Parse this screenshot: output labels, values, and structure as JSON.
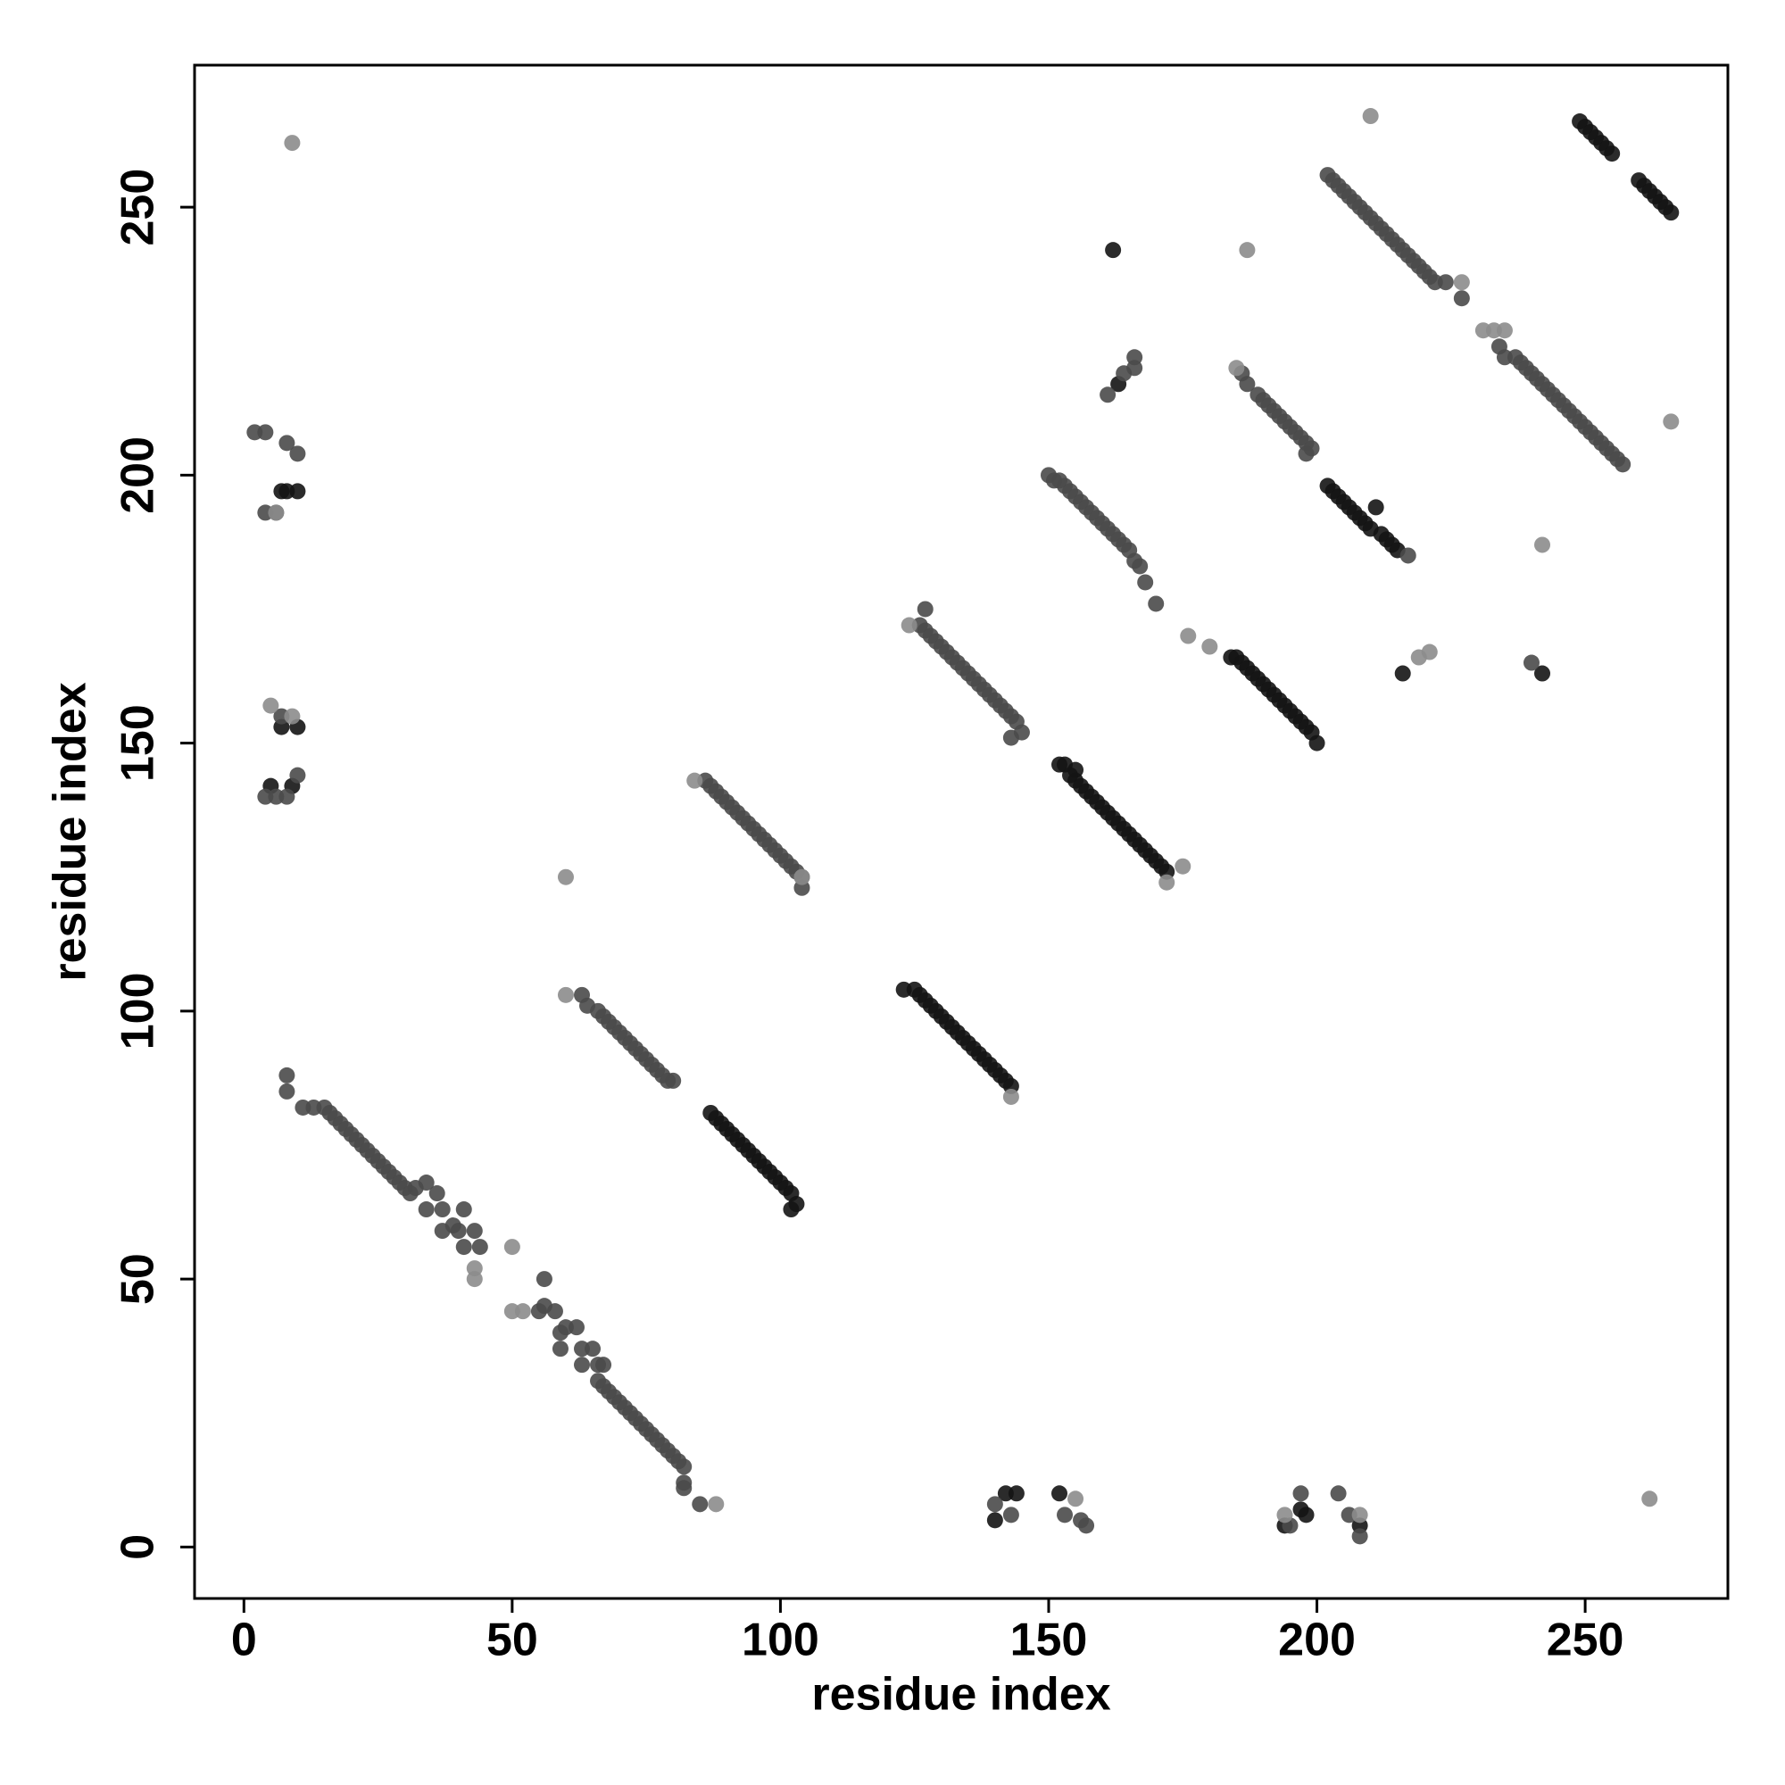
{
  "chart_data": {
    "type": "scatter",
    "xlabel": "residue index",
    "ylabel": "residue index",
    "xlim": [
      -9.2,
      276.6
    ],
    "ylim": [
      -9.6,
      276.5
    ],
    "xticks": [
      0,
      50,
      100,
      150,
      200,
      250
    ],
    "yticks": [
      0,
      50,
      100,
      150,
      200,
      250
    ],
    "series": [
      {
        "color": "#141414",
        "x": [
          87,
          88,
          89,
          90,
          91,
          92,
          93,
          94,
          95,
          96,
          97,
          98,
          99,
          100,
          101,
          102,
          102,
          103,
          123,
          125,
          126,
          127,
          128,
          129,
          130,
          131,
          132,
          133,
          134,
          135,
          136,
          137,
          138,
          139,
          140,
          141,
          142,
          143,
          152,
          153,
          155,
          154,
          155,
          156,
          157,
          158,
          159,
          160,
          161,
          162,
          163,
          164,
          165,
          166,
          167,
          168,
          169,
          170,
          171,
          172,
          184,
          185,
          186,
          187,
          188,
          189,
          190,
          191,
          192,
          193,
          194,
          195,
          196,
          197,
          198,
          199,
          200,
          202,
          203,
          204,
          205,
          206,
          207,
          208,
          209,
          210,
          211,
          212,
          213,
          214,
          215,
          249,
          250,
          251,
          252,
          253,
          254,
          255,
          260,
          261,
          262,
          263,
          264,
          265,
          266,
          7,
          8,
          10,
          7,
          10,
          5,
          9,
          140,
          142,
          144,
          152,
          194,
          197,
          198,
          208,
          162,
          163,
          216,
          242
        ],
        "values": [
          81,
          80,
          79,
          78,
          77,
          76,
          75,
          74,
          73,
          72,
          71,
          70,
          69,
          68,
          67,
          66,
          63,
          64,
          104,
          104,
          103,
          102,
          101,
          100,
          99,
          98,
          97,
          96,
          95,
          94,
          93,
          92,
          91,
          90,
          89,
          88,
          87,
          86,
          146,
          146,
          145,
          144,
          143,
          142,
          141,
          140,
          139,
          138,
          137,
          136,
          135,
          134,
          133,
          132,
          131,
          130,
          129,
          128,
          127,
          126,
          166,
          166,
          165,
          164,
          163,
          162,
          161,
          160,
          159,
          158,
          157,
          156,
          155,
          154,
          153,
          152,
          150,
          198,
          197,
          196,
          195,
          194,
          193,
          192,
          191,
          190,
          194,
          189,
          188,
          187,
          186,
          266,
          265,
          264,
          263,
          262,
          261,
          260,
          255,
          254,
          253,
          252,
          251,
          250,
          249,
          197,
          197,
          197,
          153,
          153,
          142,
          142,
          5,
          10,
          10,
          10,
          4,
          7,
          6,
          4,
          242,
          217,
          163,
          163
        ]
      },
      {
        "color": "#4a4a4a",
        "x": [
          8,
          8,
          11,
          13,
          15,
          16,
          17,
          18,
          19,
          20,
          21,
          22,
          23,
          24,
          25,
          26,
          27,
          28,
          29,
          30,
          31,
          32,
          34,
          34,
          36,
          37,
          37,
          39,
          40,
          41,
          41,
          43,
          44,
          55,
          56,
          56,
          58,
          59,
          59,
          60,
          62,
          63,
          63,
          65,
          66,
          66,
          67,
          67,
          68,
          69,
          70,
          71,
          72,
          73,
          74,
          75,
          76,
          77,
          78,
          79,
          80,
          81,
          82,
          82,
          82,
          85,
          63,
          64,
          66,
          67,
          68,
          69,
          70,
          71,
          72,
          73,
          74,
          75,
          76,
          77,
          78,
          79,
          80,
          86,
          87,
          88,
          89,
          90,
          91,
          92,
          93,
          94,
          95,
          96,
          97,
          98,
          99,
          100,
          101,
          102,
          103,
          104,
          104,
          126,
          127,
          127,
          128,
          129,
          130,
          131,
          132,
          133,
          134,
          135,
          136,
          137,
          138,
          139,
          140,
          141,
          142,
          143,
          144,
          145,
          143,
          150,
          151,
          152,
          153,
          154,
          155,
          156,
          157,
          158,
          159,
          160,
          161,
          162,
          163,
          164,
          165,
          166,
          167,
          168,
          170,
          186,
          187,
          189,
          190,
          191,
          192,
          193,
          194,
          195,
          196,
          197,
          198,
          199,
          198,
          217,
          202,
          203,
          204,
          205,
          206,
          207,
          208,
          209,
          210,
          211,
          212,
          213,
          214,
          215,
          216,
          217,
          218,
          219,
          220,
          221,
          222,
          224,
          227,
          234,
          235,
          237,
          238,
          239,
          240,
          241,
          242,
          243,
          244,
          245,
          246,
          247,
          248,
          249,
          250,
          251,
          252,
          253,
          254,
          255,
          256,
          257,
          2,
          4,
          10,
          4,
          6,
          8,
          7,
          4,
          6,
          8,
          10,
          161,
          164,
          166,
          166,
          140,
          143,
          153,
          156,
          157,
          195,
          197,
          206,
          208,
          204,
          240
        ],
        "values": [
          88,
          85,
          82,
          82,
          82,
          81,
          80,
          79,
          78,
          77,
          76,
          75,
          74,
          73,
          72,
          71,
          70,
          69,
          68,
          67,
          66,
          67,
          68,
          63,
          66,
          63,
          59,
          60,
          59,
          63,
          56,
          59,
          56,
          44,
          50,
          45,
          44,
          37,
          40,
          41,
          41,
          37,
          34,
          37,
          34,
          31,
          34,
          30,
          29,
          28,
          27,
          26,
          25,
          24,
          23,
          22,
          21,
          20,
          19,
          18,
          17,
          16,
          15,
          12,
          11,
          8,
          103,
          101,
          100,
          99,
          98,
          97,
          96,
          95,
          94,
          93,
          92,
          91,
          90,
          89,
          88,
          87,
          87,
          143,
          142,
          141,
          140,
          139,
          138,
          137,
          136,
          135,
          134,
          133,
          132,
          131,
          130,
          129,
          128,
          127,
          126,
          125,
          123,
          172,
          175,
          171,
          170,
          169,
          168,
          167,
          166,
          165,
          164,
          163,
          162,
          161,
          160,
          159,
          158,
          157,
          156,
          155,
          154,
          152,
          151,
          200,
          199,
          199,
          198,
          197,
          196,
          195,
          194,
          193,
          192,
          191,
          190,
          189,
          188,
          187,
          186,
          184,
          183,
          180,
          176,
          219,
          217,
          215,
          214,
          213,
          212,
          211,
          210,
          209,
          208,
          207,
          206,
          205,
          204,
          185,
          256,
          255,
          254,
          253,
          252,
          251,
          250,
          249,
          248,
          247,
          246,
          245,
          244,
          243,
          242,
          241,
          240,
          239,
          238,
          237,
          236,
          236,
          233,
          224,
          222,
          222,
          221,
          220,
          219,
          218,
          217,
          216,
          215,
          214,
          213,
          212,
          211,
          210,
          209,
          208,
          207,
          206,
          205,
          204,
          203,
          202,
          208,
          208,
          204,
          193,
          193,
          206,
          155,
          140,
          140,
          140,
          144,
          215,
          219,
          222,
          220,
          8,
          6,
          6,
          5,
          4,
          4,
          10,
          6,
          2,
          10,
          165
        ]
      },
      {
        "color": "#8c8c8c",
        "x": [
          60,
          60,
          9,
          210,
          187,
          231,
          233,
          235,
          185,
          84,
          124,
          266,
          262,
          242,
          43,
          43,
          50,
          50,
          52,
          88,
          176,
          180,
          227,
          6,
          5,
          9,
          175,
          172,
          104,
          143,
          155,
          219,
          221,
          194,
          208
        ],
        "values": [
          103,
          125,
          262,
          267,
          242,
          227,
          227,
          227,
          220,
          143,
          172,
          210,
          9,
          187,
          52,
          50,
          56,
          44,
          44,
          8,
          170,
          168,
          236,
          193,
          157,
          155,
          127,
          124,
          125,
          84,
          9,
          166,
          167,
          6,
          6
        ]
      }
    ]
  }
}
